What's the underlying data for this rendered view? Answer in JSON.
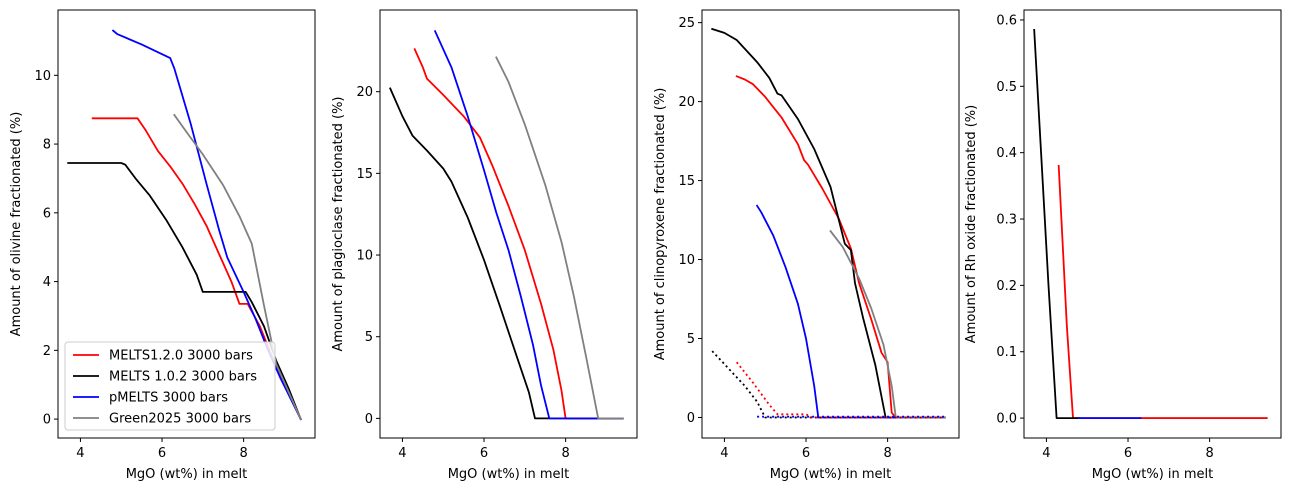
{
  "chart_data": [
    {
      "type": "line",
      "xlabel": "MgO (wt%) in melt",
      "ylabel": "Amount of olivine fractionated (%)",
      "xlim": [
        3.45,
        9.75
      ],
      "ylim": [
        -0.55,
        11.9
      ],
      "xticks": [
        4,
        6,
        8
      ],
      "yticks": [
        0,
        2,
        4,
        6,
        8,
        10
      ],
      "legend": "lower-left",
      "series": [
        {
          "name": "MELTS1.2.0 3000 bars",
          "color": "#ff0000",
          "dash": "solid",
          "points": [
            [
              4.3,
              8.75
            ],
            [
              5.4,
              8.75
            ],
            [
              5.6,
              8.4
            ],
            [
              5.9,
              7.8
            ],
            [
              6.2,
              7.35
            ],
            [
              6.5,
              6.85
            ],
            [
              6.8,
              6.25
            ],
            [
              7.1,
              5.6
            ],
            [
              7.4,
              4.8
            ],
            [
              7.7,
              4.0
            ],
            [
              7.9,
              3.35
            ],
            [
              8.1,
              3.35
            ],
            [
              8.4,
              2.7
            ],
            [
              8.7,
              1.8
            ],
            [
              9.0,
              1.0
            ],
            [
              9.4,
              0.0
            ]
          ]
        },
        {
          "name": "MELTS 1.0.2 3000 bars",
          "color": "#000000",
          "dash": "solid",
          "points": [
            [
              3.7,
              7.45
            ],
            [
              5.0,
              7.45
            ],
            [
              5.1,
              7.4
            ],
            [
              5.35,
              7.0
            ],
            [
              5.7,
              6.5
            ],
            [
              6.1,
              5.8
            ],
            [
              6.5,
              5.0
            ],
            [
              6.85,
              4.2
            ],
            [
              7.0,
              3.7
            ],
            [
              8.05,
              3.7
            ],
            [
              8.2,
              3.4
            ],
            [
              8.5,
              2.7
            ],
            [
              8.8,
              1.7
            ],
            [
              9.1,
              0.9
            ],
            [
              9.4,
              0.0
            ]
          ]
        },
        {
          "name": "pMELTS 3000 bars",
          "color": "#0000ff",
          "dash": "solid",
          "points": [
            [
              4.8,
              11.3
            ],
            [
              4.9,
              11.2
            ],
            [
              5.5,
              10.9
            ],
            [
              6.2,
              10.5
            ],
            [
              6.3,
              10.2
            ],
            [
              6.7,
              8.6
            ],
            [
              7.1,
              6.8
            ],
            [
              7.4,
              5.5
            ],
            [
              7.6,
              4.7
            ],
            [
              8.0,
              3.7
            ],
            [
              8.3,
              2.9
            ],
            [
              8.6,
              2.0
            ],
            [
              8.9,
              1.2
            ],
            [
              9.4,
              0.0
            ]
          ]
        },
        {
          "name": "Green2025 3000 bars",
          "color": "#808080",
          "dash": "solid",
          "points": [
            [
              6.3,
              8.85
            ],
            [
              6.6,
              8.35
            ],
            [
              7.0,
              7.7
            ],
            [
              7.5,
              6.8
            ],
            [
              7.9,
              5.9
            ],
            [
              8.2,
              5.1
            ],
            [
              8.5,
              3.3
            ],
            [
              8.8,
              1.6
            ],
            [
              9.1,
              0.8
            ],
            [
              9.4,
              0.0
            ]
          ]
        }
      ]
    },
    {
      "type": "line",
      "xlabel": "MgO (wt%) in melt",
      "ylabel": "Amount of plagioclase fractionated (%)",
      "xlim": [
        3.45,
        9.75
      ],
      "ylim": [
        -1.2,
        25.0
      ],
      "xticks": [
        4,
        6,
        8
      ],
      "yticks": [
        0,
        5,
        10,
        15,
        20
      ],
      "series": [
        {
          "color": "#ff0000",
          "dash": "solid",
          "points": [
            [
              4.3,
              22.6
            ],
            [
              4.5,
              21.5
            ],
            [
              4.6,
              20.8
            ],
            [
              5.0,
              19.8
            ],
            [
              5.5,
              18.5
            ],
            [
              5.9,
              17.2
            ],
            [
              6.2,
              15.5
            ],
            [
              6.6,
              13.0
            ],
            [
              7.0,
              10.3
            ],
            [
              7.4,
              7.0
            ],
            [
              7.7,
              4.2
            ],
            [
              7.9,
              1.7
            ],
            [
              8.0,
              0.0
            ],
            [
              9.4,
              0.0
            ]
          ]
        },
        {
          "color": "#000000",
          "dash": "solid",
          "points": [
            [
              3.7,
              20.2
            ],
            [
              4.0,
              18.5
            ],
            [
              4.25,
              17.3
            ],
            [
              4.6,
              16.4
            ],
            [
              5.0,
              15.3
            ],
            [
              5.2,
              14.5
            ],
            [
              5.6,
              12.3
            ],
            [
              6.0,
              9.7
            ],
            [
              6.4,
              6.8
            ],
            [
              6.8,
              3.8
            ],
            [
              7.1,
              1.6
            ],
            [
              7.25,
              0.0
            ],
            [
              9.4,
              0.0
            ]
          ]
        },
        {
          "color": "#0000ff",
          "dash": "solid",
          "points": [
            [
              4.8,
              23.7
            ],
            [
              5.2,
              21.5
            ],
            [
              5.6,
              18.5
            ],
            [
              6.0,
              15.2
            ],
            [
              6.3,
              12.6
            ],
            [
              6.6,
              10.3
            ],
            [
              6.9,
              7.5
            ],
            [
              7.2,
              4.5
            ],
            [
              7.4,
              2.0
            ],
            [
              7.6,
              0.0
            ],
            [
              9.4,
              0.0
            ]
          ]
        },
        {
          "color": "#808080",
          "dash": "solid",
          "points": [
            [
              6.3,
              22.1
            ],
            [
              6.6,
              20.6
            ],
            [
              7.0,
              18.0
            ],
            [
              7.5,
              14.3
            ],
            [
              7.9,
              10.8
            ],
            [
              8.2,
              7.5
            ],
            [
              8.5,
              3.8
            ],
            [
              8.8,
              0.0
            ],
            [
              9.4,
              0.0
            ]
          ]
        }
      ]
    },
    {
      "type": "line",
      "xlabel": "MgO (wt%) in melt",
      "ylabel": "Amount of clinopyroxene fractionated (%)",
      "xlim": [
        3.45,
        9.75
      ],
      "ylim": [
        -1.3,
        25.8
      ],
      "xticks": [
        4,
        6,
        8
      ],
      "yticks": [
        0,
        5,
        10,
        15,
        20,
        25
      ],
      "series": [
        {
          "color": "#ff0000",
          "dash": "solid",
          "points": [
            [
              4.3,
              21.6
            ],
            [
              4.5,
              21.4
            ],
            [
              4.7,
              21.1
            ],
            [
              5.0,
              20.3
            ],
            [
              5.4,
              19.0
            ],
            [
              5.8,
              17.3
            ],
            [
              5.95,
              16.3
            ],
            [
              6.05,
              16.0
            ],
            [
              6.4,
              14.5
            ],
            [
              6.8,
              12.6
            ],
            [
              7.1,
              10.7
            ],
            [
              7.3,
              8.5
            ],
            [
              7.6,
              6.2
            ],
            [
              7.85,
              4.1
            ],
            [
              8.0,
              3.5
            ],
            [
              8.1,
              0.3
            ],
            [
              8.2,
              0.0
            ],
            [
              9.4,
              0.0
            ]
          ]
        },
        {
          "color": "#000000",
          "dash": "solid",
          "points": [
            [
              3.7,
              24.6
            ],
            [
              4.0,
              24.35
            ],
            [
              4.3,
              23.9
            ],
            [
              4.8,
              22.5
            ],
            [
              5.1,
              21.5
            ],
            [
              5.3,
              20.5
            ],
            [
              5.4,
              20.4
            ],
            [
              5.8,
              18.9
            ],
            [
              6.2,
              17.0
            ],
            [
              6.6,
              14.6
            ],
            [
              6.95,
              11.0
            ],
            [
              7.1,
              10.6
            ],
            [
              7.2,
              8.5
            ],
            [
              7.4,
              6.3
            ],
            [
              7.7,
              3.3
            ],
            [
              7.95,
              0.0
            ],
            [
              9.4,
              0.0
            ]
          ]
        },
        {
          "color": "#0000ff",
          "dash": "solid",
          "points": [
            [
              4.8,
              13.4
            ],
            [
              4.9,
              13.0
            ],
            [
              5.2,
              11.5
            ],
            [
              5.5,
              9.5
            ],
            [
              5.8,
              7.2
            ],
            [
              6.0,
              5.0
            ],
            [
              6.2,
              2.0
            ],
            [
              6.3,
              0.0
            ],
            [
              9.4,
              0.0
            ]
          ]
        },
        {
          "color": "#808080",
          "dash": "solid",
          "points": [
            [
              6.6,
              11.8
            ],
            [
              6.9,
              10.8
            ],
            [
              7.3,
              8.8
            ],
            [
              7.6,
              6.9
            ],
            [
              7.9,
              4.6
            ],
            [
              8.1,
              2.0
            ],
            [
              8.2,
              0.0
            ],
            [
              9.4,
              0.0
            ]
          ]
        },
        {
          "color": "#000000",
          "dash": "dotted",
          "points": [
            [
              3.7,
              4.2
            ],
            [
              4.1,
              3.1
            ],
            [
              4.5,
              2.0
            ],
            [
              4.8,
              1.0
            ],
            [
              5.0,
              0.0
            ],
            [
              9.4,
              0.0
            ]
          ]
        },
        {
          "color": "#ff0000",
          "dash": "dotted",
          "points": [
            [
              4.3,
              3.5
            ],
            [
              4.7,
              2.2
            ],
            [
              5.1,
              0.8
            ],
            [
              5.3,
              0.2
            ],
            [
              6.0,
              0.2
            ],
            [
              6.15,
              0.0
            ],
            [
              9.4,
              0.0
            ]
          ]
        },
        {
          "color": "#0000ff",
          "dash": "dotted",
          "points": [
            [
              4.8,
              0.05
            ],
            [
              9.4,
              0.05
            ]
          ]
        }
      ]
    },
    {
      "type": "line",
      "xlabel": "MgO (wt%) in melt",
      "ylabel": "Amount of Rh oxide fractionated (%)",
      "xlim": [
        3.45,
        9.75
      ],
      "ylim": [
        -0.03,
        0.615
      ],
      "xticks": [
        4,
        6,
        8
      ],
      "yticks": [
        0.0,
        0.1,
        0.2,
        0.3,
        0.4,
        0.5,
        0.6
      ],
      "ytick_labels": [
        "0.0",
        "0.1",
        "0.2",
        "0.3",
        "0.4",
        "0.5",
        "0.6"
      ],
      "series": [
        {
          "color": "#808080",
          "dash": "solid",
          "points": [
            [
              6.3,
              0.0
            ],
            [
              9.4,
              0.0
            ]
          ]
        },
        {
          "color": "#ff0000",
          "dash": "solid",
          "points": [
            [
              4.3,
              0.38
            ],
            [
              4.5,
              0.14
            ],
            [
              4.65,
              0.0
            ],
            [
              9.4,
              0.0
            ]
          ]
        },
        {
          "color": "#000000",
          "dash": "solid",
          "points": [
            [
              3.7,
              0.585
            ],
            [
              4.05,
              0.2
            ],
            [
              4.25,
              0.0
            ],
            [
              4.8,
              0.0
            ]
          ]
        },
        {
          "color": "#0000ff",
          "dash": "solid",
          "points": [
            [
              4.8,
              0.0
            ],
            [
              6.3,
              0.0
            ]
          ]
        }
      ]
    }
  ]
}
